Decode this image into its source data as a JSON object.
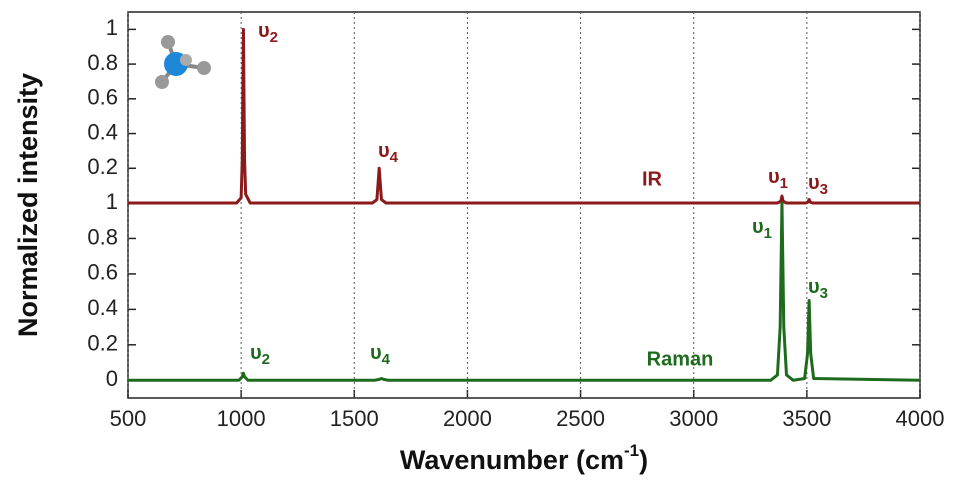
{
  "chart_data": [
    {
      "type": "line",
      "xlim": [
        500,
        4000
      ],
      "ylim": [
        0,
        1.1
      ],
      "yticks": [
        0.2,
        0.4,
        0.6,
        0.8,
        1
      ],
      "series": [
        {
          "name": "IR",
          "color": "#8b1a1a",
          "x": [
            500,
            980,
            1000,
            1005,
            1010,
            1015,
            1020,
            1040,
            1580,
            1600,
            1610,
            1620,
            1640,
            3370,
            3385,
            3390,
            3395,
            3410,
            3495,
            3505,
            3510,
            3515,
            3525,
            4000
          ],
          "values": [
            0,
            0,
            0.03,
            0.25,
            1,
            0.25,
            0.05,
            0,
            0,
            0.02,
            0.2,
            0.02,
            0,
            0,
            0.01,
            0.04,
            0.01,
            0,
            0,
            0.005,
            0.02,
            0.005,
            0,
            0
          ]
        }
      ],
      "annotations": [
        {
          "symbol": "υ",
          "sub": "2"
        },
        {
          "symbol": "υ",
          "sub": "4"
        },
        {
          "symbol": "υ",
          "sub": "1"
        },
        {
          "symbol": "υ",
          "sub": "3"
        }
      ]
    },
    {
      "type": "line",
      "xlim": [
        500,
        4000
      ],
      "ylim": [
        -0.1,
        1
      ],
      "yticks": [
        0,
        0.2,
        0.4,
        0.6,
        0.8,
        1
      ],
      "xticks": [
        500,
        1000,
        1500,
        2000,
        2500,
        3000,
        3500,
        4000
      ],
      "grid": "x",
      "xlabel": {
        "text": "Wavenumber (cm",
        "sup": "-1",
        "close": ")"
      },
      "ylabel": "Normalized intensity",
      "series": [
        {
          "name": "Raman",
          "color": "#1e6b1e",
          "x": [
            500,
            990,
            1005,
            1010,
            1015,
            1030,
            1590,
            1610,
            1620,
            1630,
            1650,
            3340,
            3370,
            3382,
            3390,
            3398,
            3410,
            3440,
            3490,
            3503,
            3510,
            3517,
            3530,
            4000
          ],
          "values": [
            0,
            0,
            0.02,
            0.04,
            0.02,
            0,
            0,
            0.005,
            0.01,
            0.005,
            0,
            0,
            0.03,
            0.3,
            1,
            0.3,
            0.03,
            0,
            0.01,
            0.15,
            0.45,
            0.15,
            0.01,
            0
          ]
        }
      ],
      "annotations": [
        {
          "symbol": "υ",
          "sub": "2"
        },
        {
          "symbol": "υ",
          "sub": "4"
        },
        {
          "symbol": "υ",
          "sub": "1"
        },
        {
          "symbol": "υ",
          "sub": "3"
        }
      ]
    }
  ]
}
